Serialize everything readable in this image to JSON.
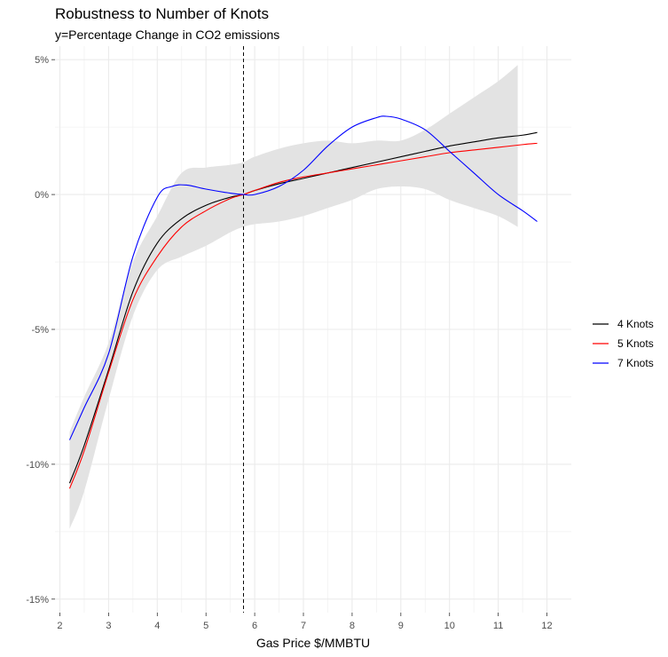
{
  "chart_data": {
    "type": "line",
    "title": "Robustness to Number of Knots",
    "subtitle": "y=Percentage Change in CO2 emissions",
    "xlabel": "Gas Price $/MMBTU",
    "ylabel": "",
    "xlim": [
      1.9,
      12.5
    ],
    "ylim": [
      -15.5,
      5.5
    ],
    "x_ticks": [
      2,
      3,
      4,
      5,
      6,
      7,
      8,
      9,
      10,
      11,
      12
    ],
    "x_tick_labels": [
      "2",
      "3",
      "4",
      "5",
      "6",
      "7",
      "8",
      "9",
      "10",
      "11",
      "12"
    ],
    "y_ticks": [
      -15,
      -10,
      -5,
      0,
      5
    ],
    "y_tick_labels": [
      "-15%",
      "-10%",
      "-5%",
      "0%",
      "5%"
    ],
    "grid": true,
    "legend_position": "right",
    "vline": {
      "x": 5.77,
      "style": "dashed"
    },
    "confidence_band": {
      "color": "#e3e3e3",
      "x": [
        2.2,
        2.5,
        3.0,
        3.5,
        4.0,
        4.5,
        5.0,
        5.5,
        5.77,
        6.0,
        6.5,
        7.0,
        7.5,
        8.0,
        8.5,
        9.0,
        9.5,
        10.0,
        10.5,
        11.0,
        11.4
      ],
      "upper": [
        -8.8,
        -7.5,
        -5.5,
        -2.5,
        -0.8,
        0.8,
        1.0,
        1.1,
        1.2,
        1.4,
        1.7,
        1.9,
        2.0,
        1.9,
        2.0,
        2.0,
        2.4,
        3.0,
        3.6,
        4.2,
        4.8
      ],
      "lower": [
        -12.4,
        -11.0,
        -7.6,
        -4.5,
        -2.8,
        -2.3,
        -1.9,
        -1.4,
        -1.2,
        -1.1,
        -1.0,
        -0.8,
        -0.5,
        -0.2,
        0.2,
        0.3,
        0.2,
        -0.2,
        -0.5,
        -0.8,
        -1.2
      ]
    },
    "series": [
      {
        "name": "4 Knots",
        "color": "#000000",
        "x": [
          2.2,
          2.5,
          3.0,
          3.5,
          4.0,
          4.5,
          5.0,
          5.5,
          5.77,
          6.0,
          6.5,
          7.0,
          7.5,
          8.0,
          8.5,
          9.0,
          9.5,
          10.0,
          10.5,
          11.0,
          11.5,
          11.8
        ],
        "values": [
          -10.7,
          -9.3,
          -6.5,
          -3.6,
          -1.8,
          -0.9,
          -0.4,
          -0.1,
          0.0,
          0.15,
          0.4,
          0.6,
          0.8,
          1.0,
          1.2,
          1.4,
          1.6,
          1.8,
          1.95,
          2.1,
          2.2,
          2.3
        ]
      },
      {
        "name": "5 Knots",
        "color": "#ff0000",
        "x": [
          2.2,
          2.5,
          3.0,
          3.5,
          4.0,
          4.5,
          5.0,
          5.5,
          5.77,
          6.0,
          6.5,
          7.0,
          7.5,
          8.0,
          8.5,
          9.0,
          9.5,
          10.0,
          10.5,
          11.0,
          11.5,
          11.8
        ],
        "values": [
          -10.9,
          -9.5,
          -6.6,
          -3.9,
          -2.3,
          -1.2,
          -0.6,
          -0.15,
          0.0,
          0.15,
          0.45,
          0.65,
          0.8,
          0.95,
          1.1,
          1.25,
          1.4,
          1.55,
          1.65,
          1.75,
          1.85,
          1.9
        ]
      },
      {
        "name": "7 Knots",
        "color": "#0000ff",
        "x": [
          2.2,
          2.5,
          3.0,
          3.5,
          4.0,
          4.3,
          4.6,
          5.0,
          5.5,
          5.77,
          6.0,
          6.5,
          7.0,
          7.5,
          8.0,
          8.5,
          8.7,
          9.0,
          9.5,
          10.0,
          10.5,
          11.0,
          11.5,
          11.8
        ],
        "values": [
          -9.1,
          -7.9,
          -5.9,
          -2.3,
          -0.1,
          0.3,
          0.35,
          0.2,
          0.05,
          0.0,
          0.0,
          0.3,
          0.9,
          1.8,
          2.5,
          2.85,
          2.9,
          2.8,
          2.4,
          1.6,
          0.8,
          0.0,
          -0.6,
          -1.0
        ]
      }
    ]
  }
}
